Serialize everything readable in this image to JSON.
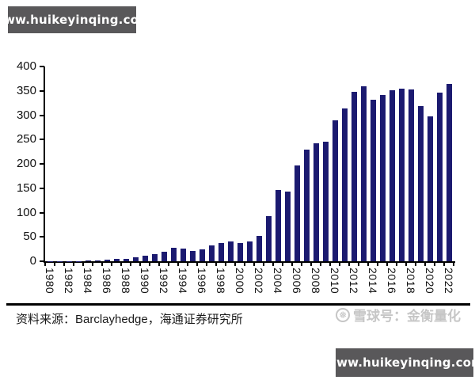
{
  "watermarks": {
    "top_banner": "www.huikeyinqing.com",
    "bottom_banner": "www.huikeyinqing.com",
    "xueqiu_label": "雪球号：金衡量化",
    "xueqiu_logo_glyph": "❅"
  },
  "footer": {
    "source": "资料来源：Barclayhedge，海通证券研究所"
  },
  "colors": {
    "bar": "#1b1a70",
    "banner_bg": "#59585a",
    "banner_text": "#ffffff",
    "axis": "#000000",
    "watermark_text": "#c6c6c6"
  },
  "chart_data": {
    "type": "bar",
    "title": "",
    "xlabel": "",
    "ylabel": "",
    "categories": [
      1980,
      1981,
      1982,
      1983,
      1984,
      1985,
      1986,
      1987,
      1988,
      1989,
      1990,
      1991,
      1992,
      1993,
      1994,
      1995,
      1996,
      1997,
      1998,
      1999,
      2000,
      2001,
      2002,
      2003,
      2004,
      2005,
      2006,
      2007,
      2008,
      2009,
      2010,
      2011,
      2012,
      2013,
      2014,
      2015,
      2016,
      2017,
      2018,
      2019,
      2020,
      2021,
      2022
    ],
    "values": [
      0.3,
      0.4,
      0.6,
      0.8,
      0.9,
      1.5,
      2.6,
      4.7,
      5.4,
      8,
      10.9,
      14.5,
      18.8,
      26.9,
      25.5,
      21,
      24.3,
      33.1,
      36.9,
      40.5,
      37.9,
      41.3,
      52,
      92,
      146,
      143,
      197,
      230,
      242,
      246,
      290,
      314,
      348,
      360,
      332,
      342,
      351,
      354,
      353,
      318,
      298,
      346,
      365
    ],
    "ylim": [
      0,
      400
    ],
    "yticks": [
      0,
      50,
      100,
      150,
      200,
      250,
      300,
      350,
      400
    ],
    "xtick_label_step": 2,
    "grid": false,
    "legend_position": "none"
  }
}
